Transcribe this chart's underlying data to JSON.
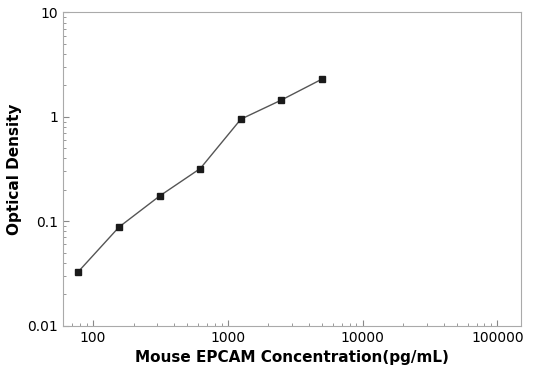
{
  "x": [
    78,
    156,
    313,
    625,
    1250,
    2500,
    5000
  ],
  "y": [
    0.033,
    0.088,
    0.175,
    0.32,
    0.95,
    1.45,
    2.3
  ],
  "xlabel": "Mouse EPCAM Concentration(pg/mL)",
  "ylabel": "Optical Density",
  "xlim": [
    60,
    150000
  ],
  "ylim": [
    0.01,
    10
  ],
  "xticks": [
    100,
    1000,
    10000,
    100000
  ],
  "yticks": [
    0.01,
    0.1,
    1,
    10
  ],
  "xtick_labels": [
    "100",
    "1000",
    "10000",
    "100000"
  ],
  "ytick_labels": [
    "0.01",
    "0.1",
    "1",
    "10"
  ],
  "marker": "s",
  "marker_color": "#1a1a1a",
  "line_color": "#555555",
  "marker_size": 5,
  "line_width": 1.0,
  "background_color": "#ffffff",
  "xlabel_fontsize": 11,
  "ylabel_fontsize": 11,
  "tick_fontsize": 10,
  "spine_color": "#aaaaaa",
  "spine_linewidth": 0.8
}
